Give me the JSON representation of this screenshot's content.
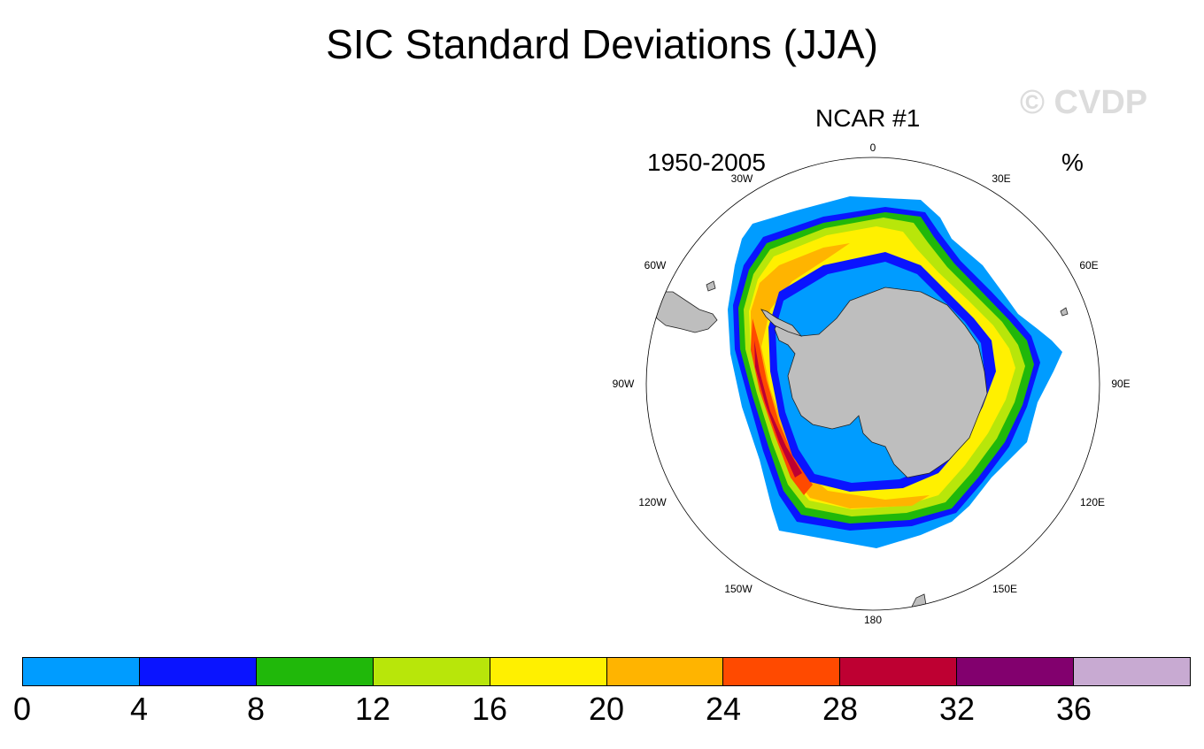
{
  "title": "SIC Standard Deviations (JJA)",
  "watermark": "© CVDP",
  "panel": {
    "model": "NCAR #1",
    "period": "1950-2005",
    "units": "%",
    "longitude_labels": [
      "0",
      "30E",
      "60E",
      "90E",
      "120E",
      "150E",
      "180",
      "150W",
      "120W",
      "90W",
      "60W",
      "30W"
    ]
  },
  "colorbar": {
    "ticks": [
      "0",
      "4",
      "8",
      "12",
      "16",
      "20",
      "24",
      "28",
      "32",
      "36"
    ],
    "colors": [
      "#009cff",
      "#0a14ff",
      "#20b80a",
      "#b8e60a",
      "#fff000",
      "#ffb400",
      "#ff4a00",
      "#be0032",
      "#82006e",
      "#c8aad2"
    ]
  },
  "colors": {
    "land": "#bebebe",
    "ice_edge": "#009cff",
    "frame": "#000000"
  }
}
